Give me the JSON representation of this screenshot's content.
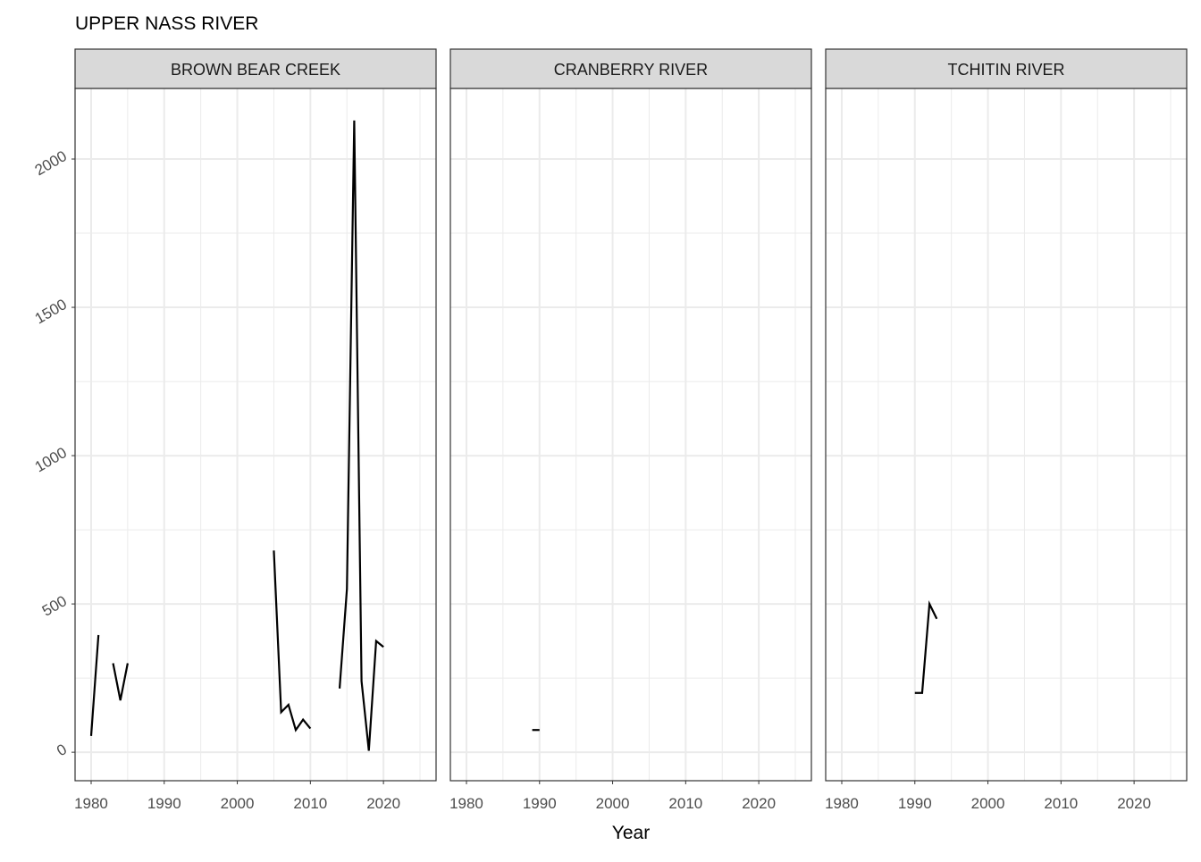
{
  "title": "UPPER NASS RIVER",
  "xlabel": "Year",
  "chart_data": [
    {
      "type": "line",
      "title": "BROWN BEAR CREEK",
      "color": "#000000",
      "grid": true,
      "x": [
        1980,
        1981,
        1982,
        1983,
        1984,
        1985,
        1986,
        2005,
        2006,
        2007,
        2008,
        2009,
        2010,
        2011,
        2014,
        2015,
        2016,
        2017,
        2018,
        2019,
        2020
      ],
      "values": [
        55,
        395,
        null,
        300,
        175,
        300,
        null,
        680,
        135,
        160,
        75,
        110,
        80,
        null,
        215,
        550,
        2130,
        240,
        5,
        375,
        355
      ],
      "xlim": [
        1977.8,
        2027.2
      ],
      "ylim": [
        -96,
        2238
      ],
      "xticks": [
        1980,
        1990,
        2000,
        2010,
        2020
      ],
      "yticks": [
        0,
        500,
        1000,
        1500,
        2000
      ]
    },
    {
      "type": "line",
      "title": "CRANBERRY RIVER",
      "color": "#000000",
      "grid": true,
      "x": [
        1989,
        1990
      ],
      "values": [
        75,
        75
      ],
      "xlim": [
        1977.8,
        2027.2
      ],
      "ylim": [
        -96,
        2238
      ],
      "xticks": [
        1980,
        1990,
        2000,
        2010,
        2020
      ],
      "yticks": [
        0,
        500,
        1000,
        1500,
        2000
      ]
    },
    {
      "type": "line",
      "title": "TCHITIN RIVER",
      "color": "#000000",
      "grid": true,
      "x": [
        1990,
        1991,
        1992,
        1993
      ],
      "values": [
        200,
        200,
        500,
        450
      ],
      "xlim": [
        1977.8,
        2027.2
      ],
      "ylim": [
        -96,
        2238
      ],
      "xticks": [
        1980,
        1990,
        2000,
        2010,
        2020
      ],
      "yticks": [
        0,
        500,
        1000,
        1500,
        2000
      ]
    }
  ]
}
